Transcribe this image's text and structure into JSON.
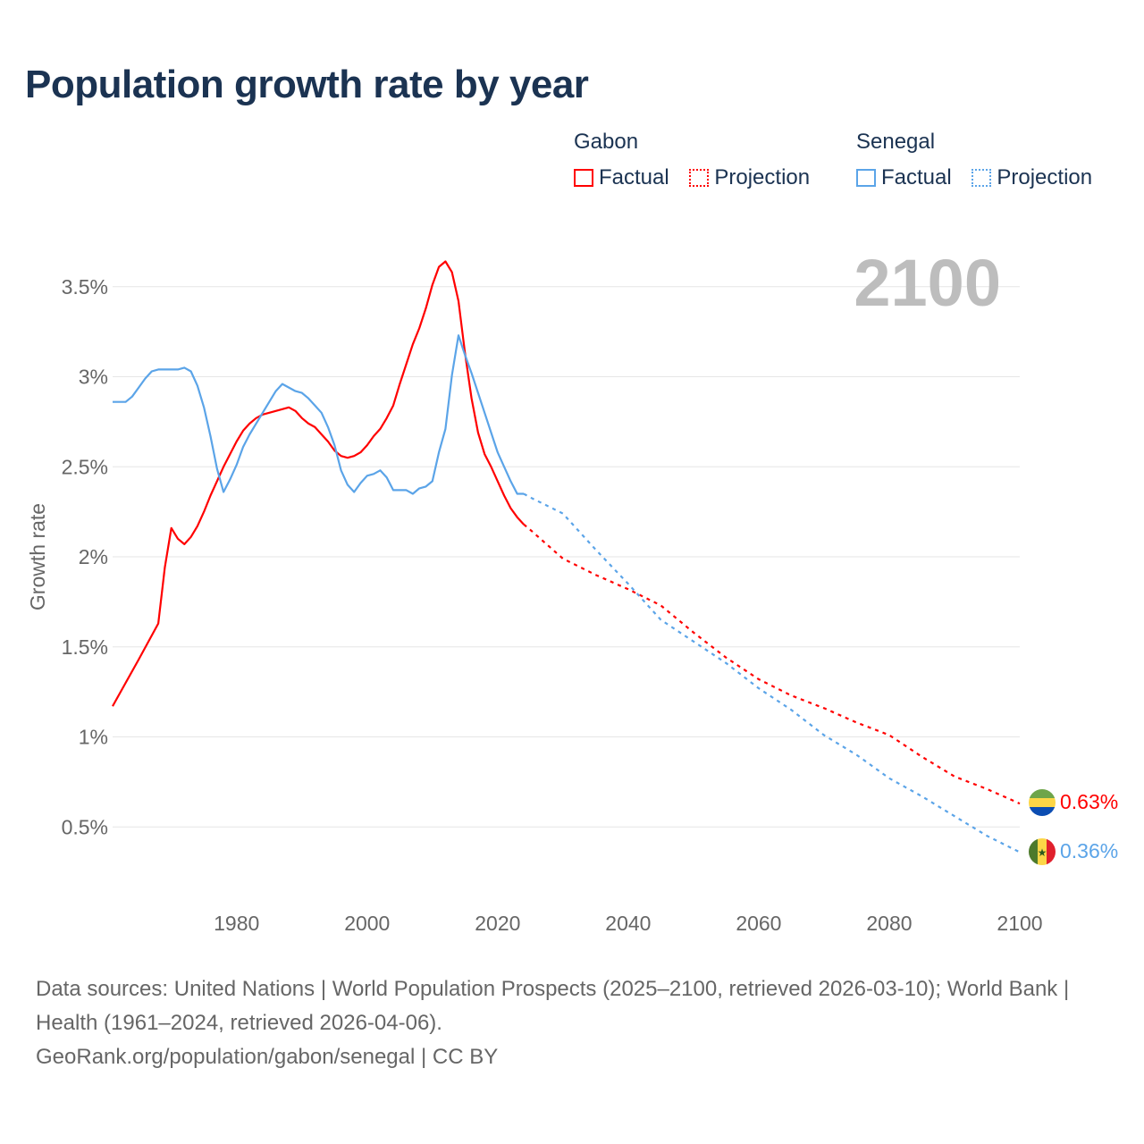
{
  "title": "Population growth rate by year",
  "legend": {
    "groups": [
      {
        "name": "Gabon",
        "factual": "Factual",
        "projection": "Projection",
        "color": "#ff0000"
      },
      {
        "name": "Senegal",
        "factual": "Factual",
        "projection": "Projection",
        "color": "#5ba4e8"
      }
    ]
  },
  "year_label": "2100",
  "end_labels": {
    "gabon": "0.63%",
    "senegal": "0.36%"
  },
  "footer": {
    "sources": "Data sources: United Nations | World Population Prospects (2025–2100, retrieved 2026-03-10); World Bank | Health (1961–2024, retrieved 2026-04-06).",
    "credit": "GeoRank.org/population/gabon/senegal | CC BY"
  },
  "chart_data": {
    "type": "line",
    "title": "Population growth rate by year",
    "xlabel": "",
    "ylabel": "Growth rate",
    "xlim": [
      1961,
      2100
    ],
    "ylim": [
      0,
      3.75
    ],
    "xticks": [
      1980,
      2000,
      2020,
      2040,
      2060,
      2080,
      2100
    ],
    "xtick_labels": [
      "1980",
      "2000",
      "2020",
      "2040",
      "2060",
      "2080",
      "2100"
    ],
    "yticks": [
      0.5,
      1,
      1.5,
      2,
      2.5,
      3,
      3.5
    ],
    "ytick_labels": [
      "0.5%",
      "1%",
      "1.5%",
      "2%",
      "2.5%",
      "3%",
      "3.5%"
    ],
    "grid": true,
    "legend_position": "top-right",
    "series": [
      {
        "name": "Gabon Factual",
        "color": "#ff0000",
        "dash": false,
        "x": [
          1961,
          1963,
          1965,
          1968,
          1969,
          1970,
          1971,
          1972,
          1973,
          1974,
          1975,
          1976,
          1977,
          1978,
          1979,
          1980,
          1981,
          1982,
          1983,
          1984,
          1985,
          1986,
          1987,
          1988,
          1989,
          1990,
          1991,
          1992,
          1993,
          1994,
          1995,
          1996,
          1997,
          1998,
          1999,
          2000,
          2001,
          2002,
          2003,
          2004,
          2005,
          2006,
          2007,
          2008,
          2009,
          2010,
          2011,
          2012,
          2013,
          2014,
          2015,
          2016,
          2017,
          2018,
          2019,
          2020,
          2021,
          2022,
          2023,
          2024
        ],
        "y": [
          1.17,
          1.3,
          1.43,
          1.63,
          1.94,
          2.16,
          2.1,
          2.07,
          2.11,
          2.17,
          2.25,
          2.34,
          2.42,
          2.5,
          2.57,
          2.64,
          2.7,
          2.74,
          2.77,
          2.79,
          2.8,
          2.81,
          2.82,
          2.83,
          2.81,
          2.77,
          2.74,
          2.72,
          2.68,
          2.64,
          2.59,
          2.56,
          2.55,
          2.56,
          2.58,
          2.62,
          2.67,
          2.71,
          2.77,
          2.84,
          2.96,
          3.07,
          3.18,
          3.27,
          3.38,
          3.51,
          3.61,
          3.64,
          3.58,
          3.42,
          3.13,
          2.88,
          2.69,
          2.57,
          2.5,
          2.42,
          2.34,
          2.27,
          2.22,
          2.18
        ]
      },
      {
        "name": "Gabon Projection",
        "color": "#ff0000",
        "dash": true,
        "x": [
          2024,
          2025,
          2030,
          2035,
          2040,
          2045,
          2050,
          2055,
          2060,
          2065,
          2070,
          2075,
          2080,
          2085,
          2090,
          2095,
          2100
        ],
        "y": [
          2.18,
          2.15,
          1.99,
          1.9,
          1.82,
          1.73,
          1.58,
          1.44,
          1.32,
          1.23,
          1.16,
          1.08,
          1.01,
          0.89,
          0.78,
          0.71,
          0.63
        ]
      },
      {
        "name": "Senegal Factual",
        "color": "#5ba4e8",
        "dash": false,
        "x": [
          1961,
          1963,
          1964,
          1965,
          1966,
          1967,
          1968,
          1971,
          1972,
          1973,
          1974,
          1975,
          1976,
          1977,
          1978,
          1979,
          1980,
          1981,
          1982,
          1983,
          1984,
          1986,
          1987,
          1988,
          1989,
          1990,
          1991,
          1992,
          1993,
          1994,
          1995,
          1996,
          1997,
          1998,
          1999,
          2000,
          2001,
          2002,
          2003,
          2004,
          2005,
          2006,
          2007,
          2008,
          2009,
          2010,
          2011,
          2012,
          2013,
          2014,
          2015,
          2016,
          2017,
          2018,
          2019,
          2020,
          2021,
          2022,
          2023,
          2024
        ],
        "y": [
          2.86,
          2.86,
          2.89,
          2.94,
          2.99,
          3.03,
          3.04,
          3.04,
          3.05,
          3.03,
          2.95,
          2.83,
          2.67,
          2.49,
          2.36,
          2.43,
          2.51,
          2.61,
          2.68,
          2.74,
          2.8,
          2.92,
          2.96,
          2.94,
          2.92,
          2.91,
          2.88,
          2.84,
          2.8,
          2.72,
          2.62,
          2.48,
          2.4,
          2.36,
          2.41,
          2.45,
          2.46,
          2.48,
          2.44,
          2.37,
          2.37,
          2.37,
          2.35,
          2.38,
          2.39,
          2.42,
          2.58,
          2.71,
          3.01,
          3.23,
          3.12,
          3.02,
          2.91,
          2.8,
          2.69,
          2.58,
          2.5,
          2.42,
          2.35,
          2.35
        ]
      },
      {
        "name": "Senegal Projection",
        "color": "#5ba4e8",
        "dash": true,
        "x": [
          2024,
          2025,
          2030,
          2035,
          2040,
          2045,
          2050,
          2055,
          2060,
          2065,
          2070,
          2075,
          2080,
          2085,
          2090,
          2095,
          2100
        ],
        "y": [
          2.35,
          2.33,
          2.24,
          2.04,
          1.85,
          1.65,
          1.53,
          1.41,
          1.27,
          1.15,
          1.01,
          0.9,
          0.77,
          0.67,
          0.56,
          0.45,
          0.36
        ]
      }
    ]
  }
}
